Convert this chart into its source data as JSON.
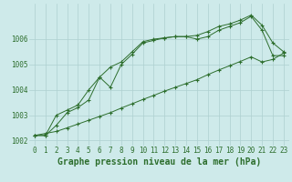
{
  "title": "Graphe pression niveau de la mer (hPa)",
  "background_color": "#ceeaea",
  "grid_color": "#aed0d0",
  "line_color": "#2d6e2d",
  "x_values": [
    0,
    1,
    2,
    3,
    4,
    5,
    6,
    7,
    8,
    9,
    10,
    11,
    12,
    13,
    14,
    15,
    16,
    17,
    18,
    19,
    20,
    21,
    22,
    23
  ],
  "series1": [
    1002.2,
    1002.2,
    1002.6,
    1003.1,
    1003.3,
    1003.6,
    1004.5,
    1004.1,
    1005.0,
    1005.4,
    1005.85,
    1005.95,
    1006.05,
    1006.1,
    1006.1,
    1006.0,
    1006.1,
    1006.35,
    1006.5,
    1006.65,
    1006.9,
    1006.35,
    1005.35,
    1005.35
  ],
  "series2": [
    1002.2,
    1002.2,
    1003.0,
    1003.2,
    1003.4,
    1004.0,
    1004.5,
    1004.9,
    1005.1,
    1005.5,
    1005.9,
    1006.0,
    1006.05,
    1006.1,
    1006.1,
    1006.15,
    1006.3,
    1006.5,
    1006.6,
    1006.75,
    1006.95,
    1006.55,
    1005.85,
    1005.5
  ],
  "series3": [
    1002.2,
    1002.28,
    1002.36,
    1002.5,
    1002.65,
    1002.8,
    1002.95,
    1003.1,
    1003.28,
    1003.45,
    1003.62,
    1003.78,
    1003.95,
    1004.1,
    1004.25,
    1004.4,
    1004.6,
    1004.78,
    1004.95,
    1005.12,
    1005.3,
    1005.1,
    1005.2,
    1005.45
  ],
  "ylim": [
    1001.8,
    1007.4
  ],
  "yticks": [
    1002,
    1003,
    1004,
    1005,
    1006
  ],
  "xlim": [
    -0.5,
    23.5
  ],
  "title_fontsize": 7.0,
  "tick_fontsize": 5.5,
  "marker_size": 3,
  "linewidth": 0.7
}
